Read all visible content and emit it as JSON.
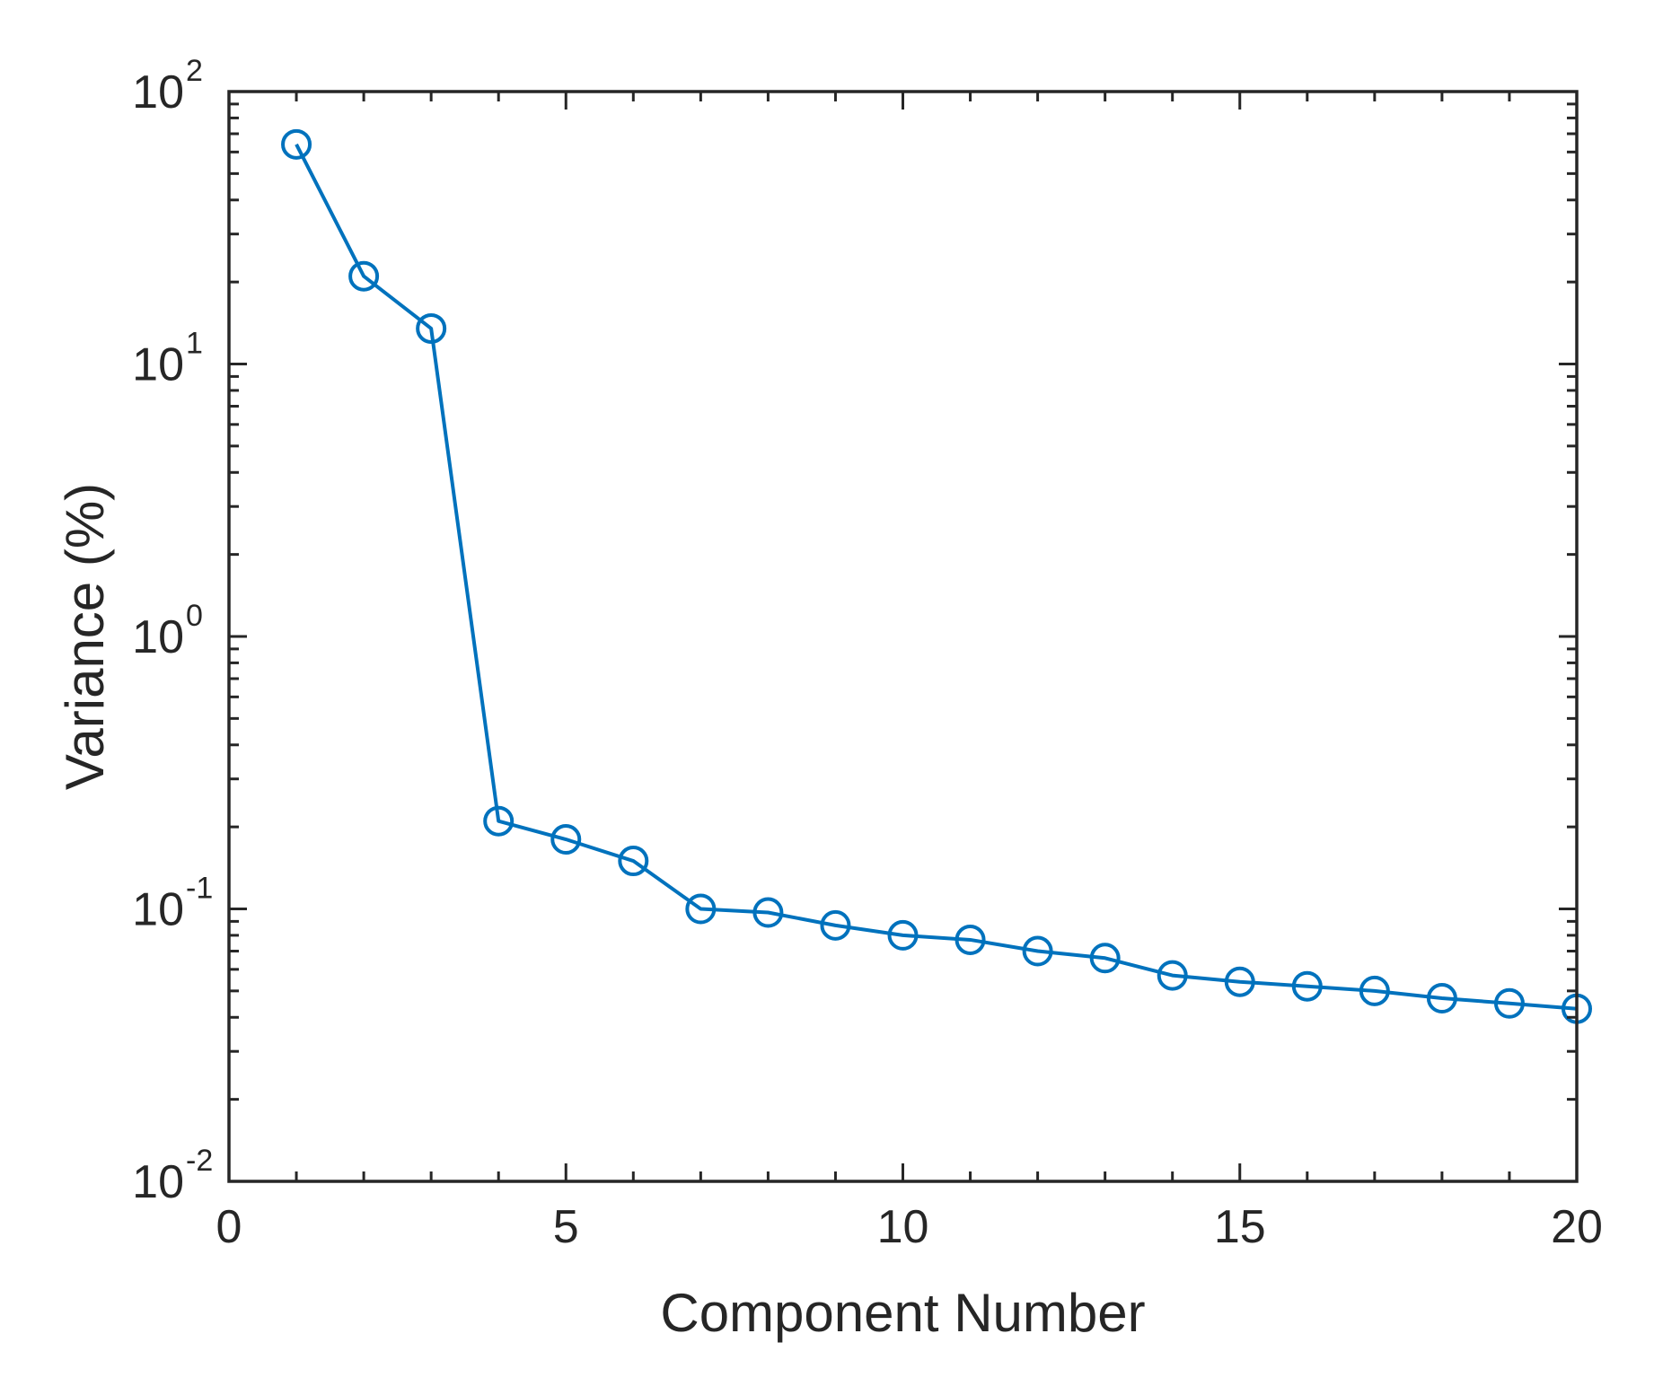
{
  "chart_data": {
    "type": "line",
    "title": "",
    "xlabel": "Component Number",
    "ylabel": "Variance (%)",
    "xlim": [
      0,
      20
    ],
    "ylim": [
      0.01,
      100
    ],
    "yscale": "log",
    "grid": false,
    "legend": "none",
    "x_ticks": [
      0,
      5,
      10,
      15,
      20
    ],
    "y_ticks": [
      {
        "value": 0.01,
        "base": "10",
        "exp": "-2"
      },
      {
        "value": 0.1,
        "base": "10",
        "exp": "-1"
      },
      {
        "value": 1,
        "base": "10",
        "exp": "0"
      },
      {
        "value": 10,
        "base": "10",
        "exp": "1"
      },
      {
        "value": 100,
        "base": "10",
        "exp": "2"
      }
    ],
    "series": [
      {
        "color": "#0072BD",
        "marker": "circle-open",
        "x": [
          1,
          2,
          3,
          4,
          5,
          6,
          7,
          8,
          9,
          10,
          11,
          12,
          13,
          14,
          15,
          16,
          17,
          18,
          19,
          20
        ],
        "y": [
          64,
          21,
          13.5,
          0.21,
          0.18,
          0.15,
          0.1,
          0.097,
          0.087,
          0.08,
          0.077,
          0.07,
          0.066,
          0.057,
          0.054,
          0.052,
          0.05,
          0.047,
          0.045,
          0.043
        ]
      }
    ]
  }
}
